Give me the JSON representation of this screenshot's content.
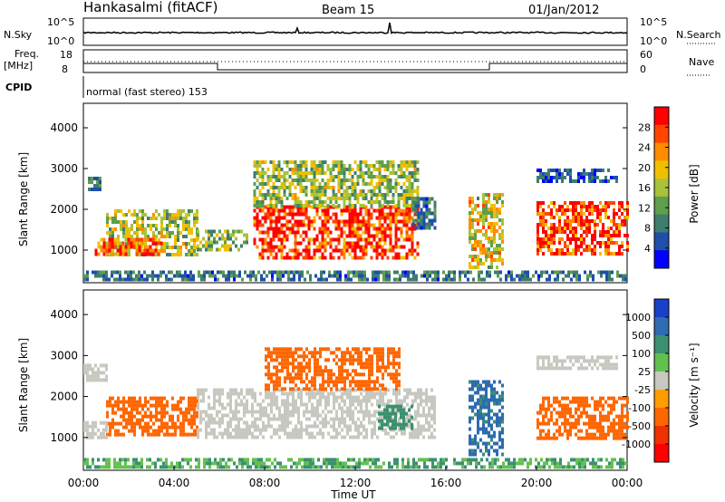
{
  "header": {
    "station": "Hankasalmi (fitACF)",
    "beam": "Beam 15",
    "date": "01/Jan/2012"
  },
  "top_panels": {
    "nsky_label": "N.Sky",
    "nsky_ticks": [
      "10^5",
      "10^0"
    ],
    "nsearch_label": "N.Search",
    "nsearch_ticks": [
      "10^5",
      "10^0"
    ],
    "freq_label": "Freq.",
    "freq_unit": "[MHz]",
    "freq_ticks": [
      "18",
      "8"
    ],
    "nave_label": "Nave",
    "nave_ticks": [
      "60",
      "0"
    ],
    "cpid_label": "CPID",
    "cpid_value": "normal (fast stereo) 153"
  },
  "x_axis": {
    "label": "Time UT",
    "ticks": [
      "00:00",
      "04:00",
      "08:00",
      "12:00",
      "16:00",
      "20:00",
      "00:00"
    ]
  },
  "colors": {
    "power_scale": [
      "#0000ff",
      "#1f4fa8",
      "#3e7d6e",
      "#5e9e4c",
      "#a8c23a",
      "#f0c000",
      "#ff8c00",
      "#ff4500",
      "#ff0000"
    ],
    "velocity_scale": [
      "#1840c8",
      "#2e6bb0",
      "#3b9070",
      "#63c050",
      "#c8c8c0",
      "#ff9c00",
      "#ff6600",
      "#f03000",
      "#ff0000"
    ]
  },
  "chart_data": [
    {
      "type": "heatmap",
      "panel": "power",
      "ylabel": "Slant Range [km]",
      "xlabel": "Time UT",
      "xlim": [
        0,
        24
      ],
      "ylim": [
        200,
        4600
      ],
      "yticks": [
        "4000",
        "3000",
        "2000",
        "1000"
      ],
      "colorbar_label": "Power [dB]",
      "colorbar_ticks": [
        "28",
        "24",
        "20",
        "16",
        "12",
        "8",
        "4"
      ],
      "colorbar_range": [
        0,
        32
      ],
      "regions": [
        {
          "t0": 1.0,
          "t1": 5.0,
          "r0": 900,
          "r1": 2000,
          "value": 16
        },
        {
          "t0": 0.5,
          "t1": 3.5,
          "r0": 900,
          "r1": 1300,
          "value": 26
        },
        {
          "t0": 0.2,
          "t1": 0.8,
          "r0": 2500,
          "r1": 2800,
          "value": 8
        },
        {
          "t0": 5.0,
          "t1": 7.2,
          "r0": 1000,
          "r1": 1500,
          "value": 14
        },
        {
          "t0": 7.5,
          "t1": 14.8,
          "r0": 800,
          "r1": 2100,
          "value": 29
        },
        {
          "t0": 7.5,
          "t1": 14.8,
          "r0": 2100,
          "r1": 3200,
          "value": 15
        },
        {
          "t0": 14.5,
          "t1": 15.5,
          "r0": 1500,
          "r1": 2300,
          "value": 8
        },
        {
          "t0": 17.0,
          "t1": 18.5,
          "r0": 600,
          "r1": 2400,
          "value": 18
        },
        {
          "t0": 20.0,
          "t1": 24.0,
          "r0": 900,
          "r1": 2200,
          "value": 28
        },
        {
          "t0": 20.0,
          "t1": 23.5,
          "r0": 2700,
          "r1": 3000,
          "value": 6
        },
        {
          "t0": 0.0,
          "t1": 24.0,
          "r0": 250,
          "r1": 500,
          "value": 8
        }
      ]
    },
    {
      "type": "heatmap",
      "panel": "velocity",
      "ylabel": "Slant Range [km]",
      "xlabel": "Time UT",
      "xlim": [
        0,
        24
      ],
      "ylim": [
        200,
        4600
      ],
      "yticks": [
        "4000",
        "3000",
        "2000",
        "1000"
      ],
      "colorbar_label": "Velocity [m s⁻¹]",
      "colorbar_ticks": [
        "1000",
        "500",
        "100",
        "25",
        "-25",
        "-100",
        "-500",
        "-1000"
      ],
      "regions": [
        {
          "t0": 1.0,
          "t1": 5.0,
          "r0": 1100,
          "r1": 2000,
          "value": -300
        },
        {
          "t0": 0.0,
          "t1": 1.0,
          "r0": 1000,
          "r1": 1400,
          "value": 0
        },
        {
          "t0": 0.0,
          "t1": 1.0,
          "r0": 2400,
          "r1": 2800,
          "value": 0
        },
        {
          "t0": 5.0,
          "t1": 15.5,
          "r0": 1000,
          "r1": 2200,
          "value": 0
        },
        {
          "t0": 8.0,
          "t1": 14.0,
          "r0": 2200,
          "r1": 3200,
          "value": -150
        },
        {
          "t0": 13.0,
          "t1": 14.5,
          "r0": 1200,
          "r1": 1800,
          "value": 300
        },
        {
          "t0": 17.0,
          "t1": 18.5,
          "r0": 600,
          "r1": 2400,
          "value": 600
        },
        {
          "t0": 20.0,
          "t1": 24.0,
          "r0": 1000,
          "r1": 2000,
          "value": -300
        },
        {
          "t0": 20.0,
          "t1": 23.5,
          "r0": 2700,
          "r1": 3000,
          "value": 0
        },
        {
          "t0": 0.0,
          "t1": 24.0,
          "r0": 250,
          "r1": 500,
          "value": 100
        }
      ]
    }
  ]
}
